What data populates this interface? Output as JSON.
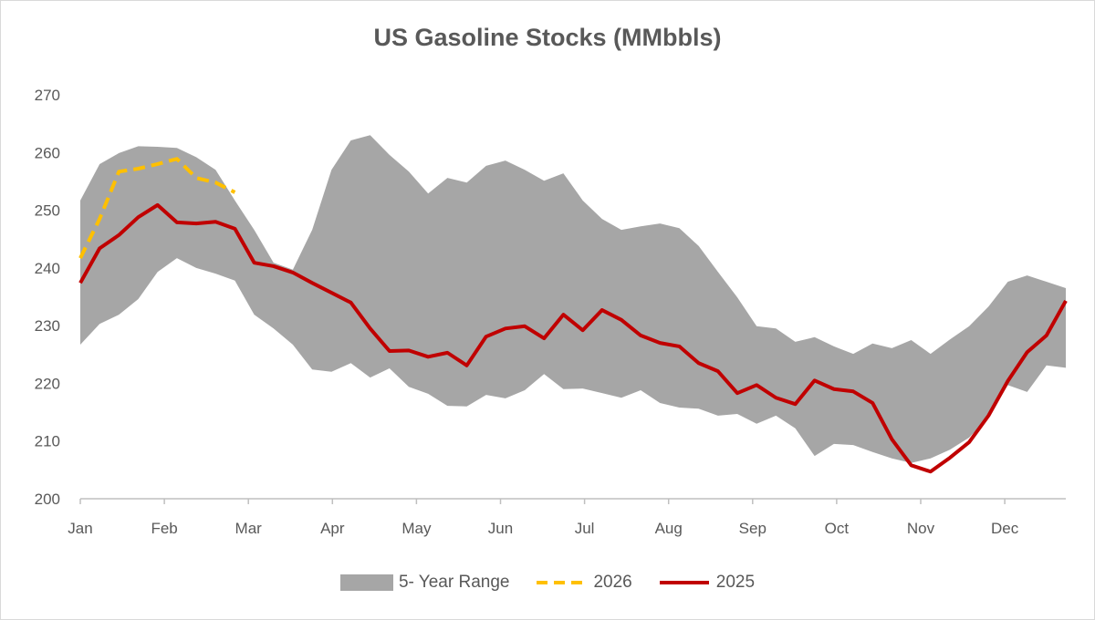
{
  "chart_data": {
    "type": "area",
    "title": "US Gasoline Stocks (MMbbls)",
    "xlabel": "",
    "ylabel": "",
    "ylim": [
      200,
      270
    ],
    "yticks": [
      200,
      210,
      220,
      230,
      240,
      250,
      260,
      270
    ],
    "xlim": [
      1,
      52
    ],
    "x_unit": "week",
    "month_labels": [
      "Jan",
      "Feb",
      "Mar",
      "Apr",
      "May",
      "Jun",
      "Jul",
      "Aug",
      "Sep",
      "Oct",
      "Nov",
      "Dec"
    ],
    "grid": false,
    "legend_position": "bottom",
    "colors": {
      "range": "#a6a6a6",
      "y2026": "#ffc000",
      "y2025": "#c00000"
    },
    "series": [
      {
        "name": "5- Year Range",
        "kind": "band",
        "upper": [
          251.7,
          258.0,
          259.9,
          261.1,
          261.0,
          260.8,
          259.2,
          257.0,
          251.7,
          246.6,
          240.9,
          239.7,
          246.6,
          257.0,
          262.1,
          263.0,
          259.6,
          256.7,
          252.9,
          255.6,
          254.8,
          257.7,
          258.6,
          257.0,
          255.1,
          256.4,
          251.7,
          248.5,
          246.6,
          247.2,
          247.7,
          246.9,
          243.8,
          239.3,
          234.9,
          229.9,
          229.5,
          227.2,
          228.0,
          226.4,
          225.1,
          226.9,
          226.1,
          227.5,
          225.1,
          227.6,
          229.9,
          233.3,
          237.6,
          238.7,
          237.6,
          236.5
        ],
        "lower": [
          226.7,
          230.3,
          231.9,
          234.6,
          239.3,
          241.7,
          240.0,
          239.0,
          237.8,
          231.9,
          229.5,
          226.7,
          222.4,
          222.0,
          223.5,
          221.0,
          222.6,
          219.4,
          218.2,
          216.1,
          216.0,
          218.0,
          217.4,
          218.8,
          221.6,
          219.0,
          219.1,
          218.3,
          217.5,
          218.8,
          216.6,
          215.8,
          215.6,
          214.4,
          214.7,
          213.0,
          214.4,
          212.2,
          207.4,
          209.5,
          209.3,
          208.1,
          207.0,
          206.2,
          207.0,
          208.5,
          210.6,
          214.1,
          219.7,
          218.5,
          223.1,
          222.7
        ]
      },
      {
        "name": "2026",
        "kind": "dashed",
        "values": [
          241.7,
          248.5,
          256.7,
          257.2,
          258.0,
          258.9,
          255.6,
          254.8,
          253.1
        ]
      },
      {
        "name": "2025",
        "kind": "line",
        "values": [
          237.4,
          243.4,
          245.7,
          248.8,
          250.9,
          247.9,
          247.7,
          248.0,
          246.8,
          240.9,
          240.3,
          239.2,
          237.4,
          235.7,
          234.0,
          229.5,
          225.6,
          225.7,
          224.6,
          225.3,
          223.1,
          228.1,
          229.5,
          229.9,
          227.8,
          231.9,
          229.2,
          232.7,
          231.0,
          228.3,
          227.0,
          226.4,
          223.5,
          222.1,
          218.3,
          219.7,
          217.5,
          216.4,
          220.5,
          219.0,
          218.6,
          216.6,
          210.3,
          205.8,
          204.7,
          207.1,
          209.8,
          214.4,
          220.4,
          225.4,
          228.3,
          234.3
        ]
      }
    ]
  }
}
